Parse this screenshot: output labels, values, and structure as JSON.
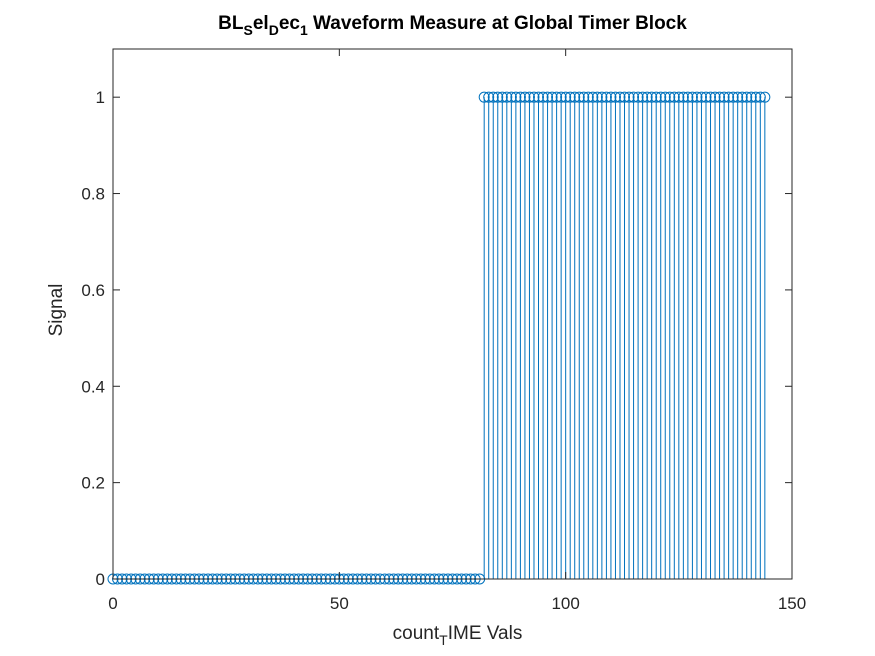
{
  "chart_data": {
    "type": "stem",
    "title": {
      "parts": [
        {
          "text": "BL",
          "sub": false
        },
        {
          "text": "S",
          "sub": true
        },
        {
          "text": "el",
          "sub": false
        },
        {
          "text": "D",
          "sub": true
        },
        {
          "text": "ec",
          "sub": false
        },
        {
          "text": "1",
          "sub": true
        },
        {
          "text": " Waveform Measure at Global Timer Block",
          "sub": false
        }
      ]
    },
    "xlabel": {
      "parts": [
        {
          "text": "count",
          "sub": false
        },
        {
          "text": "T",
          "sub": true
        },
        {
          "text": "IME Vals",
          "sub": false
        }
      ]
    },
    "ylabel": "Signal",
    "xlim": [
      0,
      150
    ],
    "ylim": [
      0,
      1.1
    ],
    "xticks": [
      0,
      50,
      100,
      150
    ],
    "xtick_labels": [
      "0",
      "50",
      "100",
      "150"
    ],
    "yticks": [
      0,
      0.2,
      0.4,
      0.6,
      0.8,
      1
    ],
    "ytick_labels": [
      "0",
      "0.2",
      "0.4",
      "0.6",
      "0.8",
      "1"
    ],
    "grid": false,
    "marker": "circle",
    "color": "#0072BD",
    "series": [
      {
        "x": [
          0,
          1,
          2,
          3,
          4,
          5,
          6,
          7,
          8,
          9,
          10,
          11,
          12,
          13,
          14,
          15,
          16,
          17,
          18,
          19,
          20,
          21,
          22,
          23,
          24,
          25,
          26,
          27,
          28,
          29,
          30,
          31,
          32,
          33,
          34,
          35,
          36,
          37,
          38,
          39,
          40,
          41,
          42,
          43,
          44,
          45,
          46,
          47,
          48,
          49,
          50,
          51,
          52,
          53,
          54,
          55,
          56,
          57,
          58,
          59,
          60,
          61,
          62,
          63,
          64,
          65,
          66,
          67,
          68,
          69,
          70,
          71,
          72,
          73,
          74,
          75,
          76,
          77,
          78,
          79,
          80,
          81,
          82,
          83,
          84,
          85,
          86,
          87,
          88,
          89,
          90,
          91,
          92,
          93,
          94,
          95,
          96,
          97,
          98,
          99,
          100,
          101,
          102,
          103,
          104,
          105,
          106,
          107,
          108,
          109,
          110,
          111,
          112,
          113,
          114,
          115,
          116,
          117,
          118,
          119,
          120,
          121,
          122,
          123,
          124,
          125,
          126,
          127,
          128,
          129,
          130,
          131,
          132,
          133,
          134,
          135,
          136,
          137,
          138,
          139,
          140,
          141,
          142,
          143,
          144
        ],
        "y": [
          0,
          0,
          0,
          0,
          0,
          0,
          0,
          0,
          0,
          0,
          0,
          0,
          0,
          0,
          0,
          0,
          0,
          0,
          0,
          0,
          0,
          0,
          0,
          0,
          0,
          0,
          0,
          0,
          0,
          0,
          0,
          0,
          0,
          0,
          0,
          0,
          0,
          0,
          0,
          0,
          0,
          0,
          0,
          0,
          0,
          0,
          0,
          0,
          0,
          0,
          0,
          0,
          0,
          0,
          0,
          0,
          0,
          0,
          0,
          0,
          0,
          0,
          0,
          0,
          0,
          0,
          0,
          0,
          0,
          0,
          0,
          0,
          0,
          0,
          0,
          0,
          0,
          0,
          0,
          0,
          0,
          0,
          1,
          1,
          1,
          1,
          1,
          1,
          1,
          1,
          1,
          1,
          1,
          1,
          1,
          1,
          1,
          1,
          1,
          1,
          1,
          1,
          1,
          1,
          1,
          1,
          1,
          1,
          1,
          1,
          1,
          1,
          1,
          1,
          1,
          1,
          1,
          1,
          1,
          1,
          1,
          1,
          1,
          1,
          1,
          1,
          1,
          1,
          1,
          1,
          1,
          1,
          1,
          1,
          1,
          1,
          1,
          1,
          1,
          1,
          1,
          1,
          1,
          1,
          1
        ]
      }
    ]
  }
}
